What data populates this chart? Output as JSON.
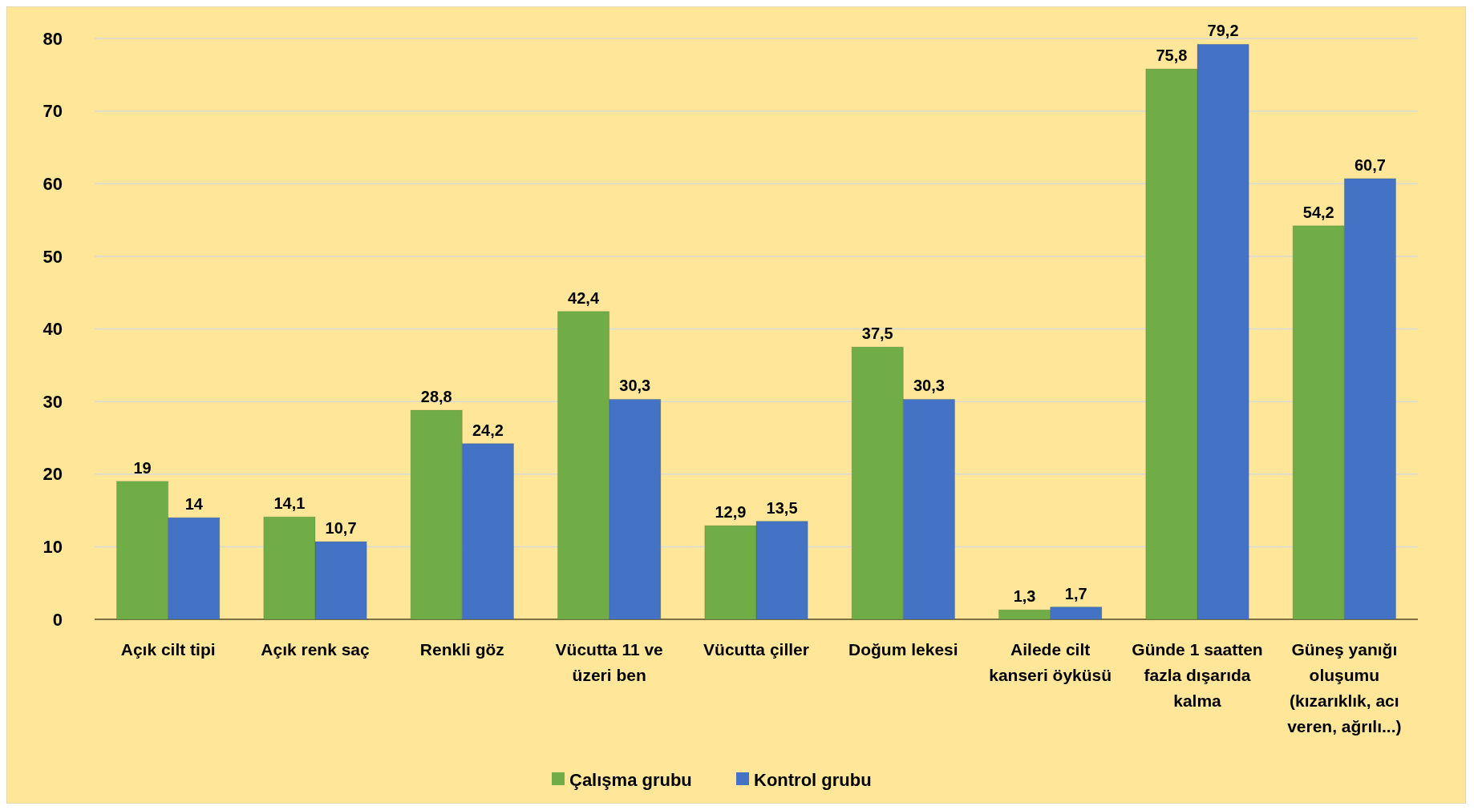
{
  "chart_data": {
    "type": "bar",
    "categories": [
      "Açık cilt tipi",
      "Açık renk saç",
      "Renkli göz",
      "Vücutta 11 ve üzeri ben",
      "Vücutta çiller",
      "Doğum lekesi",
      "Ailede cilt kanseri öyküsü",
      "Günde 1 saatten fazla dışarıda kalma",
      "Güneş yanığı oluşumu (kızarıklık, acı veren, ağrılı...)"
    ],
    "series": [
      {
        "name": "Çalışma grubu",
        "color": "#70ad47",
        "values": [
          19,
          14.1,
          28.8,
          42.4,
          12.9,
          37.5,
          1.3,
          75.8,
          54.2
        ],
        "value_labels": [
          "19",
          "14,1",
          "28,8",
          "42,4",
          "12,9",
          "37,5",
          "1,3",
          "75,8",
          "54,2"
        ]
      },
      {
        "name": "Kontrol grubu",
        "color": "#4472c4",
        "values": [
          14,
          10.7,
          24.2,
          30.3,
          13.5,
          30.3,
          1.7,
          79.2,
          60.7
        ],
        "value_labels": [
          "14",
          "10,7",
          "24,2",
          "30,3",
          "13,5",
          "30,3",
          "1,7",
          "79,2",
          "60,7"
        ]
      }
    ],
    "ylim": [
      0,
      80
    ],
    "yticks": [
      0,
      10,
      20,
      30,
      40,
      50,
      60,
      70,
      80
    ],
    "grid": "y",
    "legend": "bottom"
  }
}
